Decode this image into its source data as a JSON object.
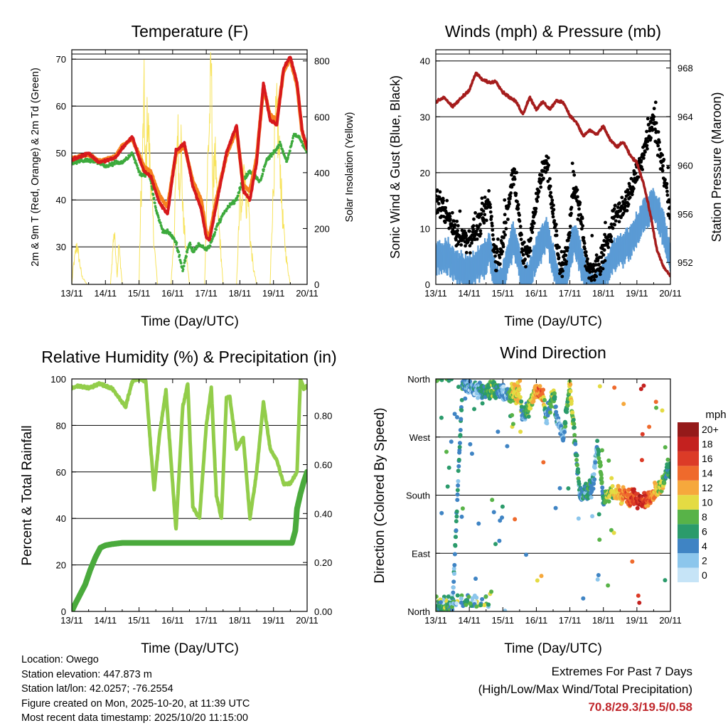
{
  "colors": {
    "temp_red": "#d7191c",
    "temp_orange": "#f5821f",
    "dewpoint_green": "#3daa3d",
    "solar_yellow": "#f7e35c",
    "wind_blue": "#5b9bd5",
    "gust_black": "#000000",
    "pressure_maroon": "#a51c1c",
    "rh_green": "#92cd4a",
    "precip_green": "#4aaa3c",
    "extremes_red": "#c0282d"
  },
  "day_ticks": [
    "13/11",
    "14/11",
    "15/11",
    "16/11",
    "17/11",
    "18/11",
    "19/11",
    "20/11"
  ],
  "chart_data": [
    {
      "id": "temperature",
      "type": "line",
      "title": "Temperature (F)",
      "xlabel": "Time (Day/UTC)",
      "ylabel": "2m & 9m T (Red, Orange) & 2m Td (Green)",
      "y2label": "Solar Insolation (Yellow)",
      "xlim": [
        0,
        7
      ],
      "ylim": [
        22,
        72
      ],
      "yticks": [
        30,
        40,
        50,
        60,
        70
      ],
      "y2lim": [
        0,
        840
      ],
      "y2ticks": [
        0,
        200,
        400,
        600,
        800
      ],
      "series": [
        {
          "name": "2m T",
          "color": "#d7191c",
          "axis": "left",
          "x": [
            0,
            0.5,
            0.8,
            1.0,
            1.3,
            1.5,
            1.8,
            2.0,
            2.15,
            2.35,
            2.6,
            2.85,
            3.1,
            3.35,
            3.6,
            3.85,
            4.0,
            4.1,
            4.3,
            4.6,
            4.9,
            5.1,
            5.3,
            5.5,
            5.7,
            5.9,
            6.1,
            6.3,
            6.5,
            6.7,
            6.85,
            7.0
          ],
          "values": [
            48.5,
            50,
            48,
            48.3,
            49,
            51,
            53.5,
            49,
            46,
            45,
            39.5,
            37,
            50.5,
            52,
            43,
            38,
            32,
            31.5,
            39,
            50,
            56,
            42,
            40,
            48,
            65,
            57,
            56,
            68,
            70.5,
            65,
            55,
            51
          ]
        },
        {
          "name": "9m T",
          "color": "#f5821f",
          "axis": "left",
          "x": [
            0,
            0.5,
            0.8,
            1.0,
            1.3,
            1.5,
            1.8,
            2.0,
            2.15,
            2.35,
            2.6,
            2.85,
            3.1,
            3.35,
            3.6,
            3.85,
            4.0,
            4.1,
            4.3,
            4.6,
            4.9,
            5.1,
            5.3,
            5.5,
            5.7,
            5.9,
            6.1,
            6.3,
            6.5,
            6.7,
            6.85,
            7.0
          ],
          "values": [
            48.8,
            49.7,
            48.3,
            48.5,
            49.3,
            51.5,
            53,
            49.5,
            47,
            46,
            41,
            38.5,
            50,
            51.5,
            44,
            40,
            33,
            32.5,
            40,
            49.5,
            55,
            43,
            42,
            49,
            64,
            58,
            57,
            67.5,
            70,
            64.5,
            54.5,
            51
          ]
        },
        {
          "name": "2m Td",
          "color": "#3daa3d",
          "axis": "left",
          "x": [
            0,
            0.5,
            0.8,
            1.0,
            1.3,
            1.5,
            1.8,
            2.0,
            2.15,
            2.3,
            2.5,
            2.7,
            2.9,
            3.1,
            3.3,
            3.5,
            3.6,
            3.8,
            4.0,
            4.1,
            4.3,
            4.5,
            4.7,
            4.9,
            5.1,
            5.3,
            5.6,
            5.8,
            6.0,
            6.2,
            6.4,
            6.6,
            6.8,
            7.0
          ],
          "values": [
            48,
            48.5,
            48,
            47,
            48,
            48,
            50,
            46,
            45,
            46,
            38,
            33.5,
            33,
            31,
            25,
            31,
            29,
            30.5,
            29.5,
            30,
            34,
            37,
            39,
            40,
            44.5,
            46,
            44,
            48.5,
            50,
            52,
            48,
            54,
            53,
            50
          ]
        },
        {
          "name": "Solar Insolation",
          "color": "#f7e35c",
          "axis": "right",
          "x": [
            0,
            0.05,
            0.15,
            0.3,
            0.45,
            0.55,
            1.15,
            1.2,
            1.25,
            1.3,
            1.35,
            1.4,
            1.5,
            2.0,
            2.05,
            2.1,
            2.15,
            2.2,
            2.25,
            2.3,
            2.45,
            2.55,
            2.95,
            3.05,
            3.1,
            3.15,
            3.2,
            3.25,
            3.3,
            3.4,
            3.5,
            3.95,
            4.0,
            4.05,
            4.1,
            4.15,
            4.2,
            4.25,
            4.3,
            4.4,
            4.5,
            4.9,
            4.95,
            5.0,
            5.05,
            5.1,
            5.15,
            5.2,
            5.25,
            5.3,
            5.4,
            5.5,
            5.9,
            5.95,
            6.0,
            6.05,
            6.1,
            6.15,
            6.2,
            6.25,
            6.3,
            6.4,
            6.5
          ],
          "values": [
            0,
            70,
            150,
            30,
            0,
            0,
            0,
            90,
            200,
            140,
            30,
            150,
            0,
            0,
            300,
            470,
            700,
            380,
            650,
            520,
            150,
            0,
            0,
            200,
            420,
            600,
            350,
            540,
            280,
            120,
            0,
            0,
            250,
            480,
            620,
            820,
            300,
            560,
            350,
            180,
            0,
            0,
            160,
            330,
            240,
            480,
            420,
            280,
            350,
            180,
            60,
            0,
            0,
            210,
            380,
            580,
            630,
            520,
            450,
            300,
            200,
            80,
            0
          ]
        }
      ]
    },
    {
      "id": "winds",
      "type": "scatter",
      "title": "Winds (mph) & Pressure (mb)",
      "xlabel": "Time (Day/UTC)",
      "ylabel": "Sonic Wind & Gust (Blue, Black)",
      "y2label": "Station Pressure (Maroon)",
      "xlim": [
        0,
        7
      ],
      "ylim": [
        0,
        42
      ],
      "yticks": [
        0,
        10,
        20,
        30,
        40
      ],
      "y2lim": [
        950.2,
        969.5
      ],
      "y2ticks": [
        952,
        956,
        960,
        964,
        968
      ],
      "series": [
        {
          "name": "Sonic Wind",
          "color": "#5b9bd5",
          "axis": "left",
          "x": [
            0,
            0.3,
            0.6,
            0.9,
            1.1,
            1.4,
            1.6,
            1.75,
            1.9,
            2.1,
            2.3,
            2.45,
            2.6,
            2.8,
            3.05,
            3.3,
            3.5,
            3.7,
            3.9,
            4.1,
            4.3,
            4.5,
            4.7,
            4.9,
            5.1,
            5.3,
            5.6,
            5.9,
            6.2,
            6.5,
            6.8,
            7.0
          ],
          "values": [
            6,
            7,
            5,
            4,
            4,
            6,
            8,
            3,
            1,
            5,
            10,
            7,
            2,
            3,
            8,
            11,
            6,
            1,
            3,
            10,
            7,
            2,
            1,
            2,
            4,
            7,
            8,
            10,
            14,
            16,
            12,
            6
          ]
        },
        {
          "name": "Gust",
          "color": "#000000",
          "axis": "left",
          "x": [
            0,
            0.3,
            0.6,
            0.9,
            1.1,
            1.4,
            1.6,
            1.75,
            1.9,
            2.1,
            2.3,
            2.45,
            2.6,
            2.8,
            3.05,
            3.3,
            3.5,
            3.7,
            3.9,
            4.1,
            4.3,
            4.5,
            4.7,
            4.9,
            5.1,
            5.3,
            5.6,
            5.9,
            6.2,
            6.5,
            6.8,
            7.0
          ],
          "values": [
            15,
            13,
            9,
            8,
            9,
            12,
            15,
            6,
            4,
            12,
            20,
            14,
            5,
            7,
            17,
            22,
            13,
            3,
            5,
            18,
            13,
            4,
            2,
            4,
            7,
            12,
            14,
            18,
            24,
            30,
            20,
            13
          ]
        },
        {
          "name": "Station Pressure",
          "color": "#a51c1c",
          "axis": "right",
          "x": [
            0,
            0.25,
            0.5,
            0.75,
            1.0,
            1.2,
            1.4,
            1.6,
            1.8,
            2.0,
            2.2,
            2.4,
            2.6,
            2.8,
            3.0,
            3.2,
            3.4,
            3.6,
            3.8,
            4.0,
            4.2,
            4.4,
            4.6,
            4.8,
            5.0,
            5.2,
            5.4,
            5.6,
            5.8,
            6.0,
            6.2,
            6.4,
            6.6,
            6.8,
            7.0
          ],
          "values": [
            965.2,
            965.6,
            964.8,
            965.5,
            966.2,
            967.6,
            967,
            966.8,
            966.9,
            966,
            965.6,
            965.2,
            964.2,
            965.6,
            964.6,
            965.2,
            964.6,
            965.3,
            965.2,
            964.1,
            963.5,
            962.4,
            962.9,
            962.5,
            963.2,
            962.1,
            961.5,
            961.9,
            960.8,
            960.2,
            958.5,
            956,
            953,
            951.6,
            950.9
          ]
        }
      ]
    },
    {
      "id": "humidity",
      "type": "line",
      "title": "Relative Humidity (%) & Precipitation (in)",
      "xlabel": "Time (Day/UTC)",
      "ylabel": "Percent & Total Rainfall",
      "xlim": [
        0,
        7
      ],
      "ylim": [
        0,
        100
      ],
      "yticks": [
        0,
        20,
        40,
        60,
        80,
        100
      ],
      "y2lim": [
        0,
        0.95
      ],
      "y2ticks": [
        "0.00",
        "0.20",
        "0.40",
        "0.60",
        "0.80"
      ],
      "series": [
        {
          "name": "Relative Humidity",
          "color": "#92cd4a",
          "axis": "left",
          "x": [
            0,
            0.2,
            0.5,
            0.8,
            1.0,
            1.2,
            1.4,
            1.6,
            1.8,
            2.0,
            2.2,
            2.35,
            2.45,
            2.6,
            2.8,
            3.0,
            3.1,
            3.3,
            3.45,
            3.6,
            3.8,
            4.0,
            4.15,
            4.3,
            4.45,
            4.6,
            4.7,
            4.9,
            5.1,
            5.3,
            5.5,
            5.7,
            5.9,
            6.1,
            6.3,
            6.5,
            6.7,
            6.8,
            6.9,
            7.0
          ],
          "values": [
            96,
            97,
            96,
            98,
            97,
            96,
            92,
            88,
            99,
            100,
            99,
            70,
            52,
            75,
            95,
            55,
            35,
            88,
            98,
            45,
            40,
            80,
            96,
            50,
            40,
            92,
            92,
            70,
            75,
            40,
            60,
            90,
            70,
            65,
            55,
            55,
            60,
            100,
            96,
            97
          ]
        },
        {
          "name": "Total Precipitation",
          "color": "#4aaa3c",
          "axis": "right",
          "x": [
            0,
            0.1,
            0.25,
            0.4,
            0.55,
            0.7,
            0.85,
            1.0,
            1.2,
            1.5,
            2.0,
            3.0,
            4.0,
            5.0,
            6.0,
            6.55,
            6.65,
            6.7,
            6.8,
            6.9,
            7.0
          ],
          "values": [
            0,
            0.03,
            0.07,
            0.11,
            0.17,
            0.22,
            0.26,
            0.27,
            0.275,
            0.28,
            0.28,
            0.28,
            0.28,
            0.28,
            0.28,
            0.28,
            0.33,
            0.42,
            0.48,
            0.53,
            0.57
          ]
        }
      ]
    },
    {
      "id": "wind_direction",
      "type": "scatter",
      "title": "Wind Direction",
      "xlabel": "Time (Day/UTC)",
      "ylabel": "Direction (Colored By Speed)",
      "xlim": [
        0,
        7
      ],
      "ylim": [
        0,
        360
      ],
      "direction_labels": [
        "North",
        "East",
        "South",
        "West",
        "North"
      ],
      "direction_values": [
        0,
        90,
        180,
        270,
        360
      ],
      "colorbar_title": "mph",
      "colorbar_labels": [
        "0",
        "2",
        "4",
        "6",
        "8",
        "10",
        "12",
        "14",
        "16",
        "18",
        "20+"
      ],
      "colorbar_colors": [
        "#c6e4f7",
        "#8cc6ec",
        "#3f84c4",
        "#2b9b6b",
        "#58b348",
        "#e4db43",
        "#f6a83c",
        "#ef6a2c",
        "#dc3b27",
        "#c4211f",
        "#951a1a"
      ],
      "series": [
        {
          "name": "Direction",
          "color": "#3f84c4",
          "x": [
            0.1,
            0.3,
            0.5,
            0.8,
            0.9,
            1.2,
            1.5,
            1.7,
            1.9,
            2.1,
            2.3,
            2.5,
            2.6,
            2.8,
            3.0,
            3.2,
            3.3,
            3.5,
            3.6,
            3.8,
            4.0,
            4.3,
            4.6,
            4.7,
            4.8,
            4.9,
            5.0,
            5.1,
            5.3,
            5.5,
            5.7,
            5.9,
            6.1,
            6.3,
            6.5,
            6.8,
            6.9
          ],
          "values": [
            5,
            10,
            8,
            355,
            350,
            345,
            340,
            345,
            340,
            335,
            340,
            338,
            300,
            320,
            345,
            330,
            300,
            340,
            300,
            270,
            350,
            180,
            190,
            200,
            260,
            230,
            170,
            180,
            185,
            180,
            178,
            180,
            170,
            170,
            180,
            200,
            220
          ],
          "speeds": [
            6,
            8,
            4,
            6,
            4,
            3,
            6,
            8,
            4,
            2,
            10,
            12,
            3,
            9,
            12,
            14,
            2,
            10,
            4,
            3,
            10,
            4,
            6,
            3,
            2,
            8,
            6,
            8,
            10,
            12,
            14,
            16,
            18,
            16,
            12,
            8,
            6
          ]
        }
      ]
    }
  ],
  "footer": {
    "location": "Location: Owego",
    "elevation": "Station elevation: 447.873 m",
    "latlon": "Station lat/lon: 42.0257; -76.2554",
    "created": "Figure created on Mon, 2025-10-20, at 11:39 UTC",
    "recent": "Most recent data timestamp: 2025/10/20 11:15:00"
  },
  "extremes": {
    "title": "Extremes For Past 7 Days",
    "subtitle": "(High/Low/Max Wind/Total Precipitation)",
    "values": "70.8/29.3/19.5/0.58"
  }
}
